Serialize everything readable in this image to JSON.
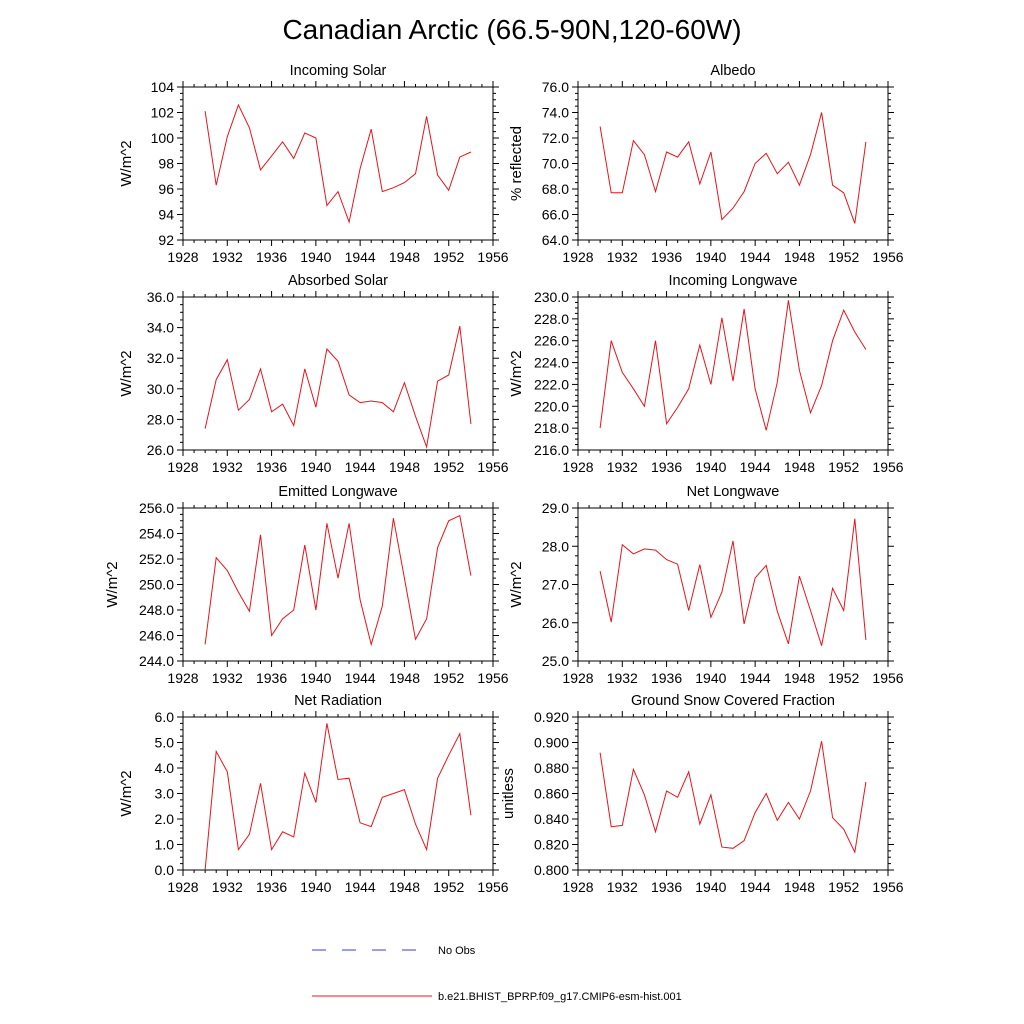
{
  "figure": {
    "title": "Canadian Arctic (66.5-90N,120-60W)"
  },
  "legend": {
    "obs_label": "No Obs",
    "model_label": "b.e21.BHIST_BPRP.f09_g17.CMIP6-esm-hist.001",
    "obs_color": "#3b3bd6",
    "model_color": "#e8141b"
  },
  "chart_data": [
    {
      "type": "line",
      "title": "Incoming Solar",
      "ylabel": "W/m^2",
      "xlim": [
        1928,
        1956
      ],
      "ylim": [
        92,
        104
      ],
      "x_ticks": [
        "1928",
        "1932",
        "1936",
        "1940",
        "1944",
        "1948",
        "1952",
        "1956"
      ],
      "y_ticks": [
        "92",
        "94",
        "96",
        "98",
        "100",
        "102",
        "104"
      ],
      "x": [
        1930,
        1931,
        1932,
        1933,
        1934,
        1935,
        1936,
        1937,
        1938,
        1939,
        1940,
        1941,
        1942,
        1943,
        1944,
        1945,
        1946,
        1947,
        1948,
        1949,
        1950,
        1951,
        1952,
        1953,
        1954
      ],
      "series": [
        {
          "values": [
            102.1,
            96.3,
            100.1,
            102.6,
            100.8,
            97.5,
            98.6,
            99.7,
            98.4,
            100.4,
            100.0,
            94.7,
            95.8,
            93.4,
            97.6,
            100.7,
            95.8,
            96.1,
            96.5,
            97.2,
            101.7,
            97.1,
            95.9,
            98.5,
            98.9
          ]
        }
      ]
    },
    {
      "type": "line",
      "title": "Albedo",
      "ylabel": "% reflected",
      "xlim": [
        1928,
        1956
      ],
      "ylim": [
        64.0,
        76.0
      ],
      "x_ticks": [
        "1928",
        "1932",
        "1936",
        "1940",
        "1944",
        "1948",
        "1952",
        "1956"
      ],
      "y_ticks": [
        "64.0",
        "66.0",
        "68.0",
        "70.0",
        "72.0",
        "74.0",
        "76.0"
      ],
      "x": [
        1930,
        1931,
        1932,
        1933,
        1934,
        1935,
        1936,
        1937,
        1938,
        1939,
        1940,
        1941,
        1942,
        1943,
        1944,
        1945,
        1946,
        1947,
        1948,
        1949,
        1950,
        1951,
        1952,
        1953,
        1954
      ],
      "series": [
        {
          "values": [
            72.9,
            67.7,
            67.7,
            71.8,
            70.7,
            67.8,
            70.9,
            70.5,
            71.7,
            68.4,
            70.9,
            65.6,
            66.5,
            67.8,
            70.0,
            70.8,
            69.2,
            70.1,
            68.3,
            70.7,
            74.0,
            68.3,
            67.7,
            65.3,
            71.7
          ]
        }
      ]
    },
    {
      "type": "line",
      "title": "Absorbed Solar",
      "ylabel": "W/m^2",
      "xlim": [
        1928,
        1956
      ],
      "ylim": [
        26.0,
        36.0
      ],
      "x_ticks": [
        "1928",
        "1932",
        "1936",
        "1940",
        "1944",
        "1948",
        "1952",
        "1956"
      ],
      "y_ticks": [
        "26.0",
        "28.0",
        "30.0",
        "32.0",
        "34.0",
        "36.0"
      ],
      "x": [
        1930,
        1931,
        1932,
        1933,
        1934,
        1935,
        1936,
        1937,
        1938,
        1939,
        1940,
        1941,
        1942,
        1943,
        1944,
        1945,
        1946,
        1947,
        1948,
        1949,
        1950,
        1951,
        1952,
        1953,
        1954
      ],
      "series": [
        {
          "values": [
            27.4,
            30.6,
            31.9,
            28.6,
            29.3,
            31.3,
            28.5,
            29.0,
            27.6,
            31.3,
            28.8,
            32.6,
            31.8,
            29.6,
            29.1,
            29.2,
            29.1,
            28.5,
            30.4,
            28.2,
            26.2,
            30.5,
            30.9,
            34.1,
            27.7
          ]
        }
      ]
    },
    {
      "type": "line",
      "title": "Incoming Longwave",
      "ylabel": "W/m^2",
      "xlim": [
        1928,
        1956
      ],
      "ylim": [
        216.0,
        230.0
      ],
      "x_ticks": [
        "1928",
        "1932",
        "1936",
        "1940",
        "1944",
        "1948",
        "1952",
        "1956"
      ],
      "y_ticks": [
        "216.0",
        "218.0",
        "220.0",
        "222.0",
        "224.0",
        "226.0",
        "228.0",
        "230.0"
      ],
      "x": [
        1930,
        1931,
        1932,
        1933,
        1934,
        1935,
        1936,
        1937,
        1938,
        1939,
        1940,
        1941,
        1942,
        1943,
        1944,
        1945,
        1946,
        1947,
        1948,
        1949,
        1950,
        1951,
        1952,
        1953,
        1954
      ],
      "series": [
        {
          "values": [
            218.0,
            226.0,
            223.1,
            221.6,
            220.0,
            226.0,
            218.4,
            219.9,
            221.6,
            225.6,
            222.0,
            228.1,
            222.3,
            228.9,
            221.6,
            217.8,
            222.2,
            229.7,
            223.3,
            219.4,
            221.9,
            226.0,
            228.8,
            226.8,
            225.2
          ]
        }
      ]
    },
    {
      "type": "line",
      "title": "Emitted Longwave",
      "ylabel": "W/m^2",
      "xlim": [
        1928,
        1956
      ],
      "ylim": [
        244.0,
        256.0
      ],
      "x_ticks": [
        "1928",
        "1932",
        "1936",
        "1940",
        "1944",
        "1948",
        "1952",
        "1956"
      ],
      "y_ticks": [
        "244.0",
        "246.0",
        "248.0",
        "250.0",
        "252.0",
        "254.0",
        "256.0"
      ],
      "x": [
        1930,
        1931,
        1932,
        1933,
        1934,
        1935,
        1936,
        1937,
        1938,
        1939,
        1940,
        1941,
        1942,
        1943,
        1944,
        1945,
        1946,
        1947,
        1948,
        1949,
        1950,
        1951,
        1952,
        1953,
        1954
      ],
      "series": [
        {
          "values": [
            245.3,
            252.1,
            251.1,
            249.4,
            247.9,
            253.9,
            246.0,
            247.3,
            248.0,
            253.1,
            248.0,
            254.8,
            250.5,
            254.8,
            248.8,
            245.3,
            248.3,
            255.2,
            250.5,
            245.7,
            247.3,
            252.9,
            255.0,
            255.4,
            250.7
          ]
        }
      ]
    },
    {
      "type": "line",
      "title": "Net Longwave",
      "ylabel": "W/m^2",
      "xlim": [
        1928,
        1956
      ],
      "ylim": [
        25.0,
        29.0
      ],
      "x_ticks": [
        "1928",
        "1932",
        "1936",
        "1940",
        "1944",
        "1948",
        "1952",
        "1956"
      ],
      "y_ticks": [
        "25.0",
        "26.0",
        "27.0",
        "28.0",
        "29.0"
      ],
      "x": [
        1930,
        1931,
        1932,
        1933,
        1934,
        1935,
        1936,
        1937,
        1938,
        1939,
        1940,
        1941,
        1942,
        1943,
        1944,
        1945,
        1946,
        1947,
        1948,
        1949,
        1950,
        1951,
        1952,
        1953,
        1954
      ],
      "series": [
        {
          "values": [
            27.35,
            26.02,
            28.04,
            27.8,
            27.93,
            27.9,
            27.65,
            27.53,
            26.32,
            27.52,
            26.14,
            26.8,
            28.14,
            25.97,
            27.17,
            27.5,
            26.3,
            25.45,
            27.22,
            26.32,
            25.4,
            26.9,
            26.32,
            28.72,
            25.55
          ]
        }
      ]
    },
    {
      "type": "line",
      "title": "Net Radiation",
      "ylabel": "W/m^2",
      "xlim": [
        1928,
        1956
      ],
      "ylim": [
        0.0,
        6.0
      ],
      "x_ticks": [
        "1928",
        "1932",
        "1936",
        "1940",
        "1944",
        "1948",
        "1952",
        "1956"
      ],
      "y_ticks": [
        "0.0",
        "1.0",
        "2.0",
        "3.0",
        "4.0",
        "5.0",
        "6.0"
      ],
      "x": [
        1930,
        1931,
        1932,
        1933,
        1934,
        1935,
        1936,
        1937,
        1938,
        1939,
        1940,
        1941,
        1942,
        1943,
        1944,
        1945,
        1946,
        1947,
        1948,
        1949,
        1950,
        1951,
        1952,
        1953,
        1954
      ],
      "series": [
        {
          "values": [
            0.0,
            4.65,
            3.85,
            0.8,
            1.4,
            3.4,
            0.8,
            1.5,
            1.3,
            3.8,
            2.65,
            5.75,
            3.55,
            3.6,
            1.85,
            1.7,
            2.85,
            3.0,
            3.15,
            1.8,
            0.8,
            3.6,
            4.5,
            5.35,
            2.15
          ]
        }
      ]
    },
    {
      "type": "line",
      "title": "Ground Snow Covered Fraction",
      "ylabel": "unitless",
      "xlim": [
        1928,
        1956
      ],
      "ylim": [
        0.8,
        0.92
      ],
      "x_ticks": [
        "1928",
        "1932",
        "1936",
        "1940",
        "1944",
        "1948",
        "1952",
        "1956"
      ],
      "y_ticks": [
        "0.800",
        "0.820",
        "0.840",
        "0.860",
        "0.880",
        "0.900",
        "0.920"
      ],
      "x": [
        1930,
        1931,
        1932,
        1933,
        1934,
        1935,
        1936,
        1937,
        1938,
        1939,
        1940,
        1941,
        1942,
        1943,
        1944,
        1945,
        1946,
        1947,
        1948,
        1949,
        1950,
        1951,
        1952,
        1953,
        1954
      ],
      "series": [
        {
          "values": [
            0.892,
            0.834,
            0.835,
            0.879,
            0.859,
            0.83,
            0.862,
            0.857,
            0.877,
            0.836,
            0.859,
            0.818,
            0.817,
            0.823,
            0.845,
            0.86,
            0.839,
            0.853,
            0.84,
            0.862,
            0.901,
            0.841,
            0.832,
            0.814,
            0.869
          ]
        }
      ]
    }
  ]
}
